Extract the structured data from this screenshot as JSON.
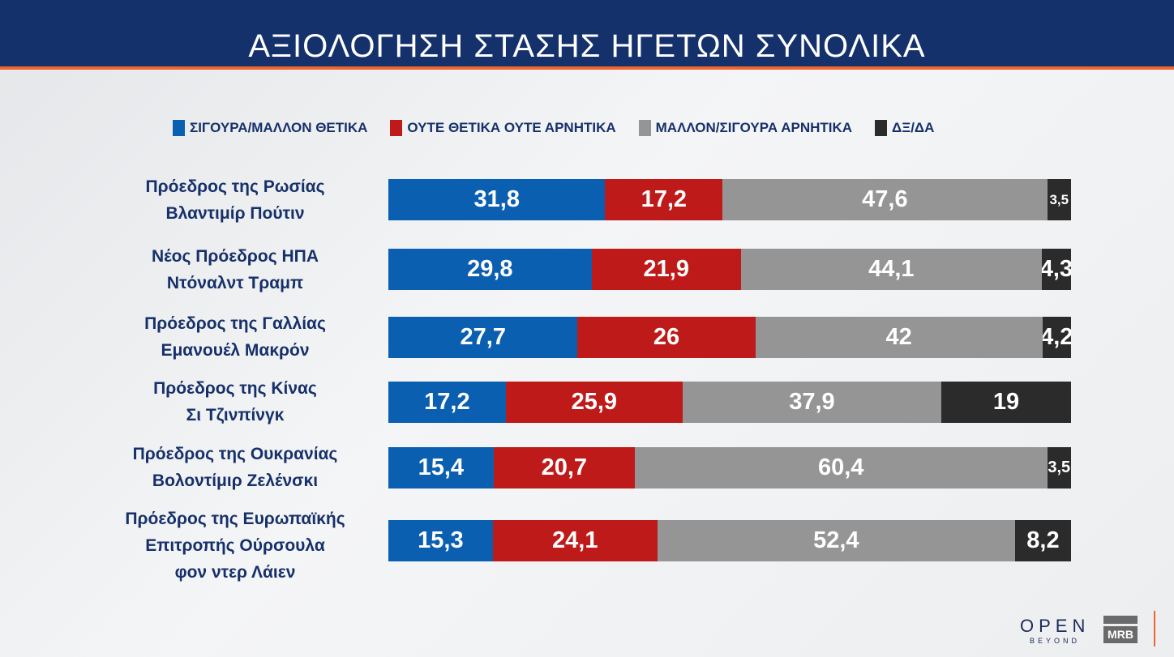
{
  "header": {
    "title": "ΑΞΙΟΛΟΓΗΣΗ ΣΤΑΣΗΣ ΗΓΕΤΩΝ ΣΥΝΟΛΙΚΑ"
  },
  "logos": {
    "open": "OPEN",
    "beyond": "BEYOND",
    "mrb": "MRB"
  },
  "chart_data": {
    "type": "bar",
    "orientation": "horizontal-stacked-100",
    "legend_position": "top",
    "series": [
      {
        "name": "ΣΙΓΟΥΡΑ/ΜΑΛΛΟΝ ΘΕΤΙΚΑ",
        "color": "#0b5fb0",
        "values": [
          31.8,
          29.8,
          27.7,
          17.2,
          15.4,
          15.3
        ]
      },
      {
        "name": "ΟΥΤΕ ΘΕΤΙΚΑ ΟΥΤΕ ΑΡΝΗΤΙΚΑ",
        "color": "#bf1a1a",
        "values": [
          17.2,
          21.9,
          26,
          25.9,
          20.7,
          24.1
        ]
      },
      {
        "name": "ΜΑΛΛΟΝ/ΣΙΓΟΥΡΑ ΑΡΝΗΤΙΚΑ",
        "color": "#959595",
        "values": [
          47.6,
          44.1,
          42,
          37.9,
          60.4,
          52.4
        ]
      },
      {
        "name": "ΔΞ/ΔΑ",
        "color": "#2b2b2b",
        "values": [
          3.5,
          4.3,
          4.2,
          19,
          3.5,
          8.2
        ]
      }
    ],
    "categories": [
      [
        "Πρόεδρος της Ρωσίας",
        "Βλαντιμίρ Πούτιν"
      ],
      [
        "Νέος Πρόεδρος ΗΠΑ",
        "Ντόναλντ Τραμπ"
      ],
      [
        "Πρόεδρος της Γαλλίας",
        "Εμανουέλ Μακρόν"
      ],
      [
        "Πρόεδρος της Κίνας",
        "Σι Τζινπίνγκ"
      ],
      [
        "Πρόεδρος της Ουκρανίας",
        "Βολοντίμιρ Ζελένσκι"
      ],
      [
        "Πρόεδρος της Ευρωπαϊκής",
        "Επιτροπής Ούρσουλα",
        "φον ντερ Λάιεν"
      ]
    ],
    "value_labels": [
      [
        "31,8",
        "17,2",
        "47,6",
        "3,5"
      ],
      [
        "29,8",
        "21,9",
        "44,1",
        "4,3"
      ],
      [
        "27,7",
        "26",
        "42",
        "4,2"
      ],
      [
        "17,2",
        "25,9",
        "37,9",
        "19"
      ],
      [
        "15,4",
        "20,7",
        "60,4",
        "3,5"
      ],
      [
        "15,3",
        "24,1",
        "52,4",
        "8,2"
      ]
    ]
  }
}
